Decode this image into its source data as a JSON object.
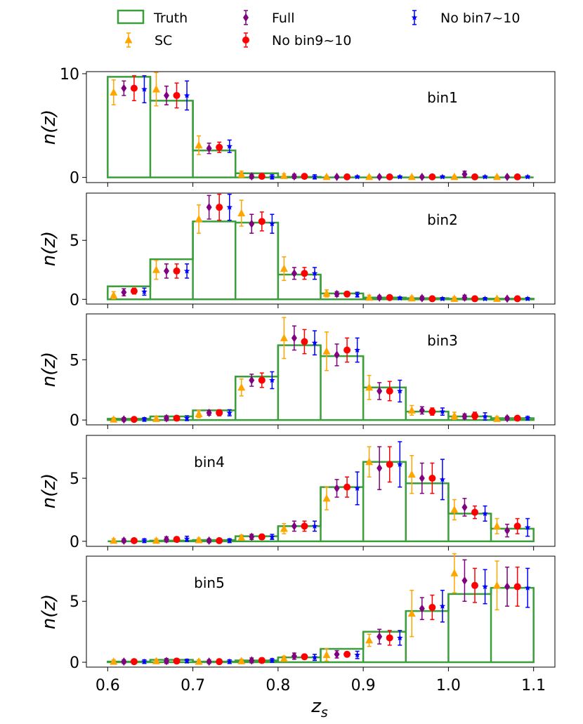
{
  "chart_data": {
    "type": "bar",
    "xlabel": "z_s",
    "ylabel": "n(z)",
    "xlim": [
      0.575,
      1.125
    ],
    "xticks": [
      "0.6",
      "0.7",
      "0.8",
      "0.9",
      "1.0",
      "1.1"
    ],
    "bin_edges": [
      0.6,
      0.65,
      0.7,
      0.75,
      0.8,
      0.85,
      0.9,
      0.95,
      1.0,
      1.05,
      1.1
    ],
    "series_styles": [
      {
        "name": "Truth",
        "color": "#3a9e3a",
        "marker": "step"
      },
      {
        "name": "SC",
        "color": "#ffa500",
        "marker": "triangle"
      },
      {
        "name": "Full",
        "color": "#800080",
        "marker": "diamond"
      },
      {
        "name": "No bin9~10",
        "color": "#ff0000",
        "marker": "circle"
      },
      {
        "name": "No bin7~10",
        "color": "#0000ff",
        "marker": "star"
      }
    ],
    "panels": [
      {
        "label": "bin1",
        "yticks": [
          "0",
          "10"
        ],
        "ylim": [
          -0.5,
          10.2
        ],
        "truth": [
          9.7,
          7.4,
          2.6,
          0.4,
          0.05,
          0.0,
          0.0,
          0.0,
          0.0,
          0.0
        ],
        "SC": [
          [
            8.2,
            1.2
          ],
          [
            8.5,
            1.6
          ],
          [
            3.1,
            0.9
          ],
          [
            0.3,
            0.3
          ],
          [
            0.15,
            0.2
          ],
          [
            0.05,
            0.1
          ],
          [
            0.05,
            0.1
          ],
          [
            0.05,
            0.1
          ],
          [
            0.05,
            0.1
          ],
          [
            0.05,
            0.1
          ]
        ],
        "Full": [
          [
            8.6,
            0.7
          ],
          [
            7.9,
            0.9
          ],
          [
            2.8,
            0.5
          ],
          [
            0.1,
            0.2
          ],
          [
            0.1,
            0.2
          ],
          [
            0.05,
            0.1
          ],
          [
            0.05,
            0.1
          ],
          [
            0.05,
            0.1
          ],
          [
            0.3,
            0.3
          ],
          [
            0.05,
            0.1
          ]
        ],
        "No bin9~10": [
          [
            8.6,
            1.2
          ],
          [
            7.9,
            1.2
          ],
          [
            2.9,
            0.5
          ],
          [
            0.1,
            0.2
          ],
          [
            0.1,
            0.2
          ],
          [
            0.05,
            0.1
          ],
          [
            0.05,
            0.1
          ],
          [
            0.05,
            0.1
          ],
          [
            0.05,
            0.1
          ],
          [
            0.05,
            0.1
          ]
        ],
        "No bin7~10": [
          [
            8.5,
            1.3
          ],
          [
            7.9,
            1.4
          ],
          [
            3.0,
            0.6
          ],
          [
            0.05,
            0.2
          ],
          [
            0.05,
            0.2
          ],
          [
            0.05,
            0.1
          ],
          [
            0.05,
            0.1
          ],
          [
            0.05,
            0.1
          ],
          [
            0.05,
            0.1
          ],
          [
            0.05,
            0.1
          ]
        ]
      },
      {
        "label": "bin2",
        "yticks": [
          "0",
          "5"
        ],
        "ylim": [
          -0.4,
          9.0
        ],
        "truth": [
          1.1,
          3.4,
          6.6,
          6.5,
          2.1,
          0.5,
          0.15,
          0.1,
          0.05,
          0.05
        ],
        "SC": [
          [
            0.35,
            0.3
          ],
          [
            2.5,
            0.8
          ],
          [
            6.8,
            1.2
          ],
          [
            7.3,
            1.1
          ],
          [
            2.6,
            1.0
          ],
          [
            0.5,
            0.3
          ],
          [
            0.15,
            0.2
          ],
          [
            0.1,
            0.15
          ],
          [
            0.05,
            0.15
          ],
          [
            0.05,
            0.1
          ]
        ],
        "Full": [
          [
            0.6,
            0.3
          ],
          [
            2.4,
            0.6
          ],
          [
            7.8,
            1.0
          ],
          [
            6.4,
            0.8
          ],
          [
            2.2,
            0.5
          ],
          [
            0.45,
            0.2
          ],
          [
            0.15,
            0.15
          ],
          [
            0.1,
            0.15
          ],
          [
            0.15,
            0.2
          ],
          [
            0.05,
            0.1
          ]
        ],
        "No bin9~10": [
          [
            0.7,
            0.25
          ],
          [
            2.4,
            0.6
          ],
          [
            7.8,
            1.1
          ],
          [
            6.6,
            0.8
          ],
          [
            2.2,
            0.5
          ],
          [
            0.45,
            0.2
          ],
          [
            0.15,
            0.15
          ],
          [
            0.05,
            0.1
          ],
          [
            0.05,
            0.1
          ],
          [
            0.05,
            0.1
          ]
        ],
        "No bin7~10": [
          [
            0.65,
            0.3
          ],
          [
            2.4,
            0.6
          ],
          [
            7.8,
            1.1
          ],
          [
            6.4,
            0.8
          ],
          [
            2.2,
            0.5
          ],
          [
            0.4,
            0.2
          ],
          [
            0.1,
            0.1
          ],
          [
            0.05,
            0.1
          ],
          [
            0.05,
            0.1
          ],
          [
            0.05,
            0.1
          ]
        ]
      },
      {
        "label": "bin3",
        "yticks": [
          "0",
          "5"
        ],
        "ylim": [
          -0.4,
          8.8
        ],
        "truth": [
          0.1,
          0.3,
          0.8,
          3.6,
          6.2,
          5.3,
          2.7,
          0.7,
          0.3,
          0.15
        ],
        "SC": [
          [
            0.05,
            0.15
          ],
          [
            0.1,
            0.2
          ],
          [
            0.5,
            0.3
          ],
          [
            2.7,
            0.7
          ],
          [
            6.8,
            1.7
          ],
          [
            5.7,
            1.6
          ],
          [
            2.7,
            1.0
          ],
          [
            0.8,
            0.4
          ],
          [
            0.35,
            0.3
          ],
          [
            0.1,
            0.2
          ]
        ],
        "Full": [
          [
            0.05,
            0.15
          ],
          [
            0.15,
            0.2
          ],
          [
            0.6,
            0.2
          ],
          [
            3.3,
            0.5
          ],
          [
            6.8,
            1.0
          ],
          [
            5.4,
            0.9
          ],
          [
            2.4,
            0.7
          ],
          [
            0.8,
            0.3
          ],
          [
            0.3,
            0.2
          ],
          [
            0.15,
            0.15
          ]
        ],
        "No bin9~10": [
          [
            0.05,
            0.15
          ],
          [
            0.15,
            0.2
          ],
          [
            0.6,
            0.25
          ],
          [
            3.3,
            0.6
          ],
          [
            6.5,
            1.0
          ],
          [
            5.8,
            1.0
          ],
          [
            2.4,
            0.8
          ],
          [
            0.7,
            0.3
          ],
          [
            0.35,
            0.3
          ],
          [
            0.15,
            0.15
          ]
        ],
        "No bin7~10": [
          [
            0.05,
            0.15
          ],
          [
            0.15,
            0.2
          ],
          [
            0.6,
            0.25
          ],
          [
            3.3,
            0.7
          ],
          [
            6.4,
            1.0
          ],
          [
            5.8,
            1.0
          ],
          [
            2.4,
            0.9
          ],
          [
            0.7,
            0.3
          ],
          [
            0.3,
            0.3
          ],
          [
            0.15,
            0.15
          ]
        ]
      },
      {
        "label": "bin4",
        "yticks": [
          "0",
          "5"
        ],
        "ylim": [
          -0.4,
          8.4
        ],
        "truth": [
          0.0,
          0.05,
          0.1,
          0.4,
          1.2,
          4.3,
          6.3,
          4.6,
          2.2,
          1.0
        ],
        "SC": [
          [
            0.05,
            0.15
          ],
          [
            0.05,
            0.15
          ],
          [
            0.1,
            0.15
          ],
          [
            0.3,
            0.2
          ],
          [
            1.0,
            0.4
          ],
          [
            3.4,
            0.9
          ],
          [
            6.3,
            1.2
          ],
          [
            5.3,
            1.5
          ],
          [
            2.5,
            0.8
          ],
          [
            1.2,
            0.6
          ]
        ],
        "Full": [
          [
            0.05,
            0.15
          ],
          [
            0.15,
            0.2
          ],
          [
            0.05,
            0.15
          ],
          [
            0.35,
            0.2
          ],
          [
            1.2,
            0.4
          ],
          [
            4.2,
            0.7
          ],
          [
            5.8,
            1.7
          ],
          [
            5.0,
            1.2
          ],
          [
            2.7,
            0.7
          ],
          [
            0.85,
            0.5
          ]
        ],
        "No bin9~10": [
          [
            0.05,
            0.15
          ],
          [
            0.15,
            0.2
          ],
          [
            0.05,
            0.15
          ],
          [
            0.35,
            0.2
          ],
          [
            1.2,
            0.4
          ],
          [
            4.3,
            0.8
          ],
          [
            6.1,
            1.4
          ],
          [
            5.0,
            1.2
          ],
          [
            2.3,
            0.5
          ],
          [
            1.2,
            0.6
          ]
        ],
        "No bin7~10": [
          [
            0.05,
            0.15
          ],
          [
            0.2,
            0.2
          ],
          [
            0.05,
            0.15
          ],
          [
            0.35,
            0.2
          ],
          [
            1.2,
            0.4
          ],
          [
            4.2,
            1.3
          ],
          [
            6.1,
            1.8
          ],
          [
            4.9,
            1.6
          ],
          [
            2.2,
            0.6
          ],
          [
            1.1,
            0.7
          ]
        ]
      },
      {
        "label": "bin5",
        "yticks": [
          "0",
          "5"
        ],
        "ylim": [
          -0.4,
          8.7
        ],
        "truth": [
          0.05,
          0.2,
          0.05,
          0.15,
          0.4,
          1.1,
          2.5,
          4.2,
          5.6,
          6.1
        ],
        "SC": [
          [
            0.05,
            0.15
          ],
          [
            0.1,
            0.15
          ],
          [
            0.05,
            0.15
          ],
          [
            0.1,
            0.15
          ],
          [
            0.3,
            0.2
          ],
          [
            0.6,
            0.5
          ],
          [
            1.8,
            0.5
          ],
          [
            4.0,
            1.9
          ],
          [
            7.3,
            1.6
          ],
          [
            6.3,
            2.0
          ]
        ],
        "Full": [
          [
            0.05,
            0.15
          ],
          [
            0.1,
            0.2
          ],
          [
            0.05,
            0.15
          ],
          [
            0.15,
            0.2
          ],
          [
            0.5,
            0.25
          ],
          [
            0.65,
            0.3
          ],
          [
            2.1,
            0.6
          ],
          [
            4.4,
            0.9
          ],
          [
            6.7,
            1.7
          ],
          [
            6.2,
            1.6
          ]
        ],
        "No bin9~10": [
          [
            0.05,
            0.15
          ],
          [
            0.1,
            0.2
          ],
          [
            0.05,
            0.15
          ],
          [
            0.15,
            0.2
          ],
          [
            0.45,
            0.2
          ],
          [
            0.65,
            0.2
          ],
          [
            2.0,
            0.6
          ],
          [
            4.5,
            1.0
          ],
          [
            6.3,
            1.4
          ],
          [
            6.2,
            1.6
          ]
        ],
        "No bin7~10": [
          [
            0.05,
            0.15
          ],
          [
            0.1,
            0.15
          ],
          [
            0.05,
            0.15
          ],
          [
            0.15,
            0.15
          ],
          [
            0.4,
            0.25
          ],
          [
            0.6,
            0.3
          ],
          [
            2.0,
            0.6
          ],
          [
            4.6,
            1.3
          ],
          [
            6.2,
            1.4
          ],
          [
            6.1,
            1.6
          ]
        ]
      }
    ]
  }
}
